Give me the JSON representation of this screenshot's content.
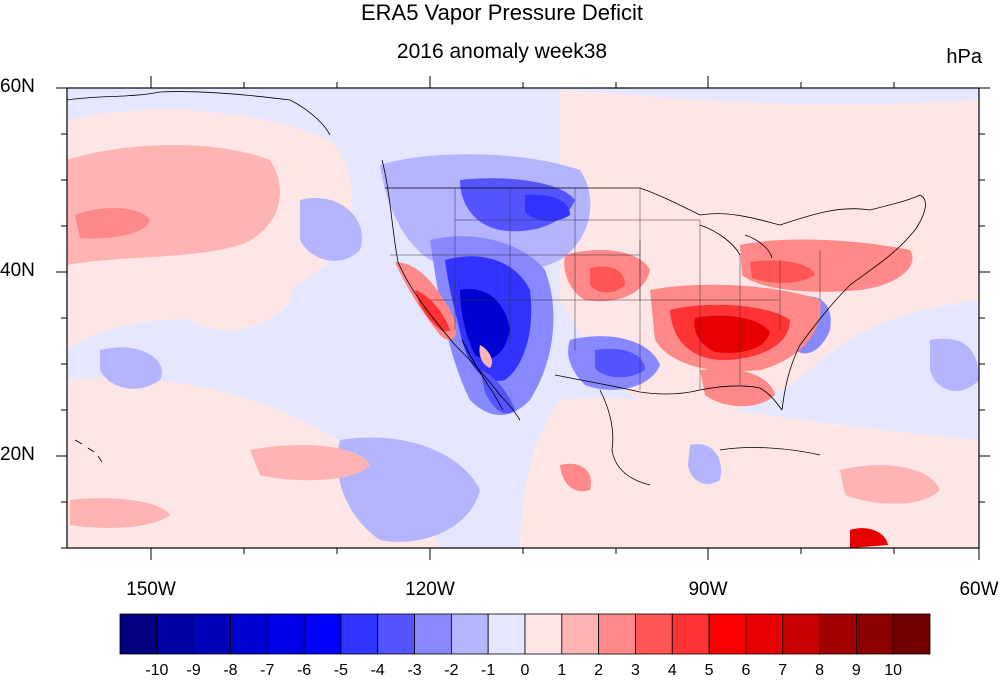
{
  "title": "ERA5 Vapor Pressure Deficit",
  "subtitle": "2016 anomaly week38",
  "units": "hPa",
  "map": {
    "region": "Contiguous United States and surrounding Pacific / Atlantic",
    "lon_range": [
      -160,
      -60
    ],
    "lat_range": [
      10,
      60
    ],
    "lat_tick_labels": [
      "60N",
      "40N",
      "20N"
    ],
    "lon_tick_labels": [
      "150W",
      "120W",
      "90W",
      "60W"
    ],
    "features": [
      {
        "name": "Southwest US / Mexico",
        "anomaly": "strong negative (blue)",
        "value_range": [
          -6,
          -3
        ]
      },
      {
        "name": "Northern Rockies / Montana",
        "anomaly": "negative (blue)",
        "value_range": [
          -4,
          -2
        ]
      },
      {
        "name": "California coast",
        "anomaly": "positive (red)",
        "value_range": [
          3,
          5
        ]
      },
      {
        "name": "Kansas",
        "anomaly": "positive (red)",
        "value_range": [
          3,
          5
        ]
      },
      {
        "name": "Southeast US (Mississippi, Alabama, Georgia)",
        "anomaly": "strong positive (red)",
        "value_range": [
          4,
          7
        ]
      },
      {
        "name": "Ohio Valley / Northeast",
        "anomaly": "positive (red)",
        "value_range": [
          2,
          4
        ]
      },
      {
        "name": "Northeast Pacific",
        "anomaly": "positive (pink)",
        "value_range": [
          1,
          3
        ]
      }
    ]
  },
  "colorbar": {
    "labels": [
      "-10",
      "-9",
      "-8",
      "-7",
      "-6",
      "-5",
      "-4",
      "-3",
      "-2",
      "-1",
      "0",
      "1",
      "2",
      "3",
      "4",
      "5",
      "6",
      "7",
      "8",
      "9",
      "10"
    ],
    "colors": [
      "#000080",
      "#0000a0",
      "#0000b8",
      "#0000d0",
      "#0000e8",
      "#0000ff",
      "#3333ff",
      "#5555ff",
      "#8888ff",
      "#b4b4ff",
      "#e6e6ff",
      "#ffe6e6",
      "#ffb4b4",
      "#ff8888",
      "#ff5555",
      "#ff3333",
      "#ff0000",
      "#e60000",
      "#c80000",
      "#a00000",
      "#8b0000",
      "#700000"
    ]
  }
}
